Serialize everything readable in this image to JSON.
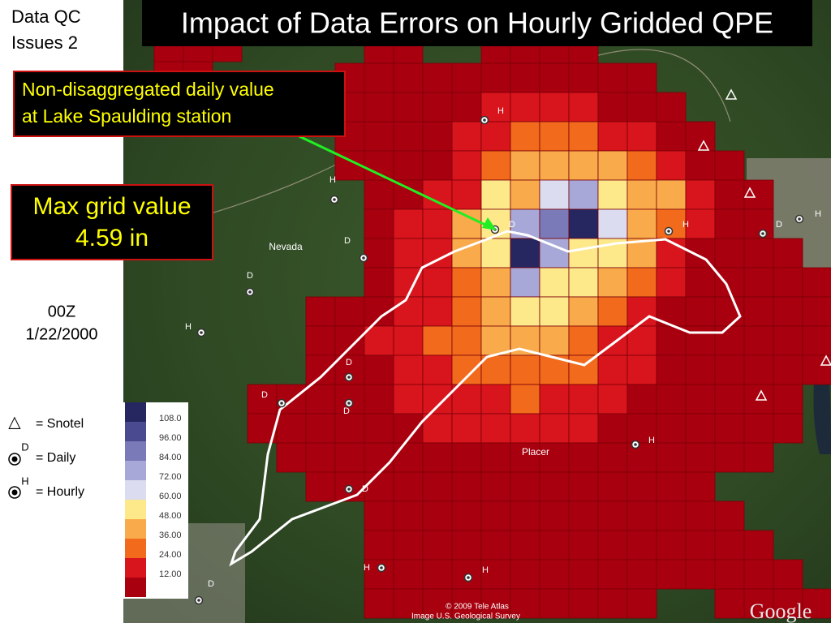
{
  "slide": {
    "corner_label": [
      "Data QC",
      "Issues 2"
    ],
    "title": "Impact of Data Errors on Hourly Gridded QPE",
    "annotation": [
      "Non-disaggregated daily value",
      "at Lake Spaulding station"
    ],
    "max_box": [
      "Max grid value",
      "4.59 in"
    ],
    "time": [
      "00Z",
      "1/22/2000"
    ],
    "key": [
      {
        "symbol": "△",
        "label": "= Snotel"
      },
      {
        "symbol": "D",
        "label": "= Daily"
      },
      {
        "symbol": "H",
        "label": "= Hourly"
      }
    ]
  },
  "map": {
    "place_labels": [
      "Nevada",
      "Placer"
    ],
    "stations": [
      "H",
      "H",
      "D",
      "D",
      "D",
      "H",
      "D",
      "D",
      "D",
      "H",
      "D",
      "H",
      "H",
      "D",
      "H",
      "D",
      "H"
    ],
    "legend_labels": [
      "108.0",
      "96.00",
      "84.00",
      "72.00",
      "60.00",
      "48.00",
      "36.00",
      "24.00",
      "12.00"
    ],
    "credits": [
      "© 2009 Tele Atlas",
      "Image U.S. Geological Survey"
    ],
    "logo": "Google"
  }
}
